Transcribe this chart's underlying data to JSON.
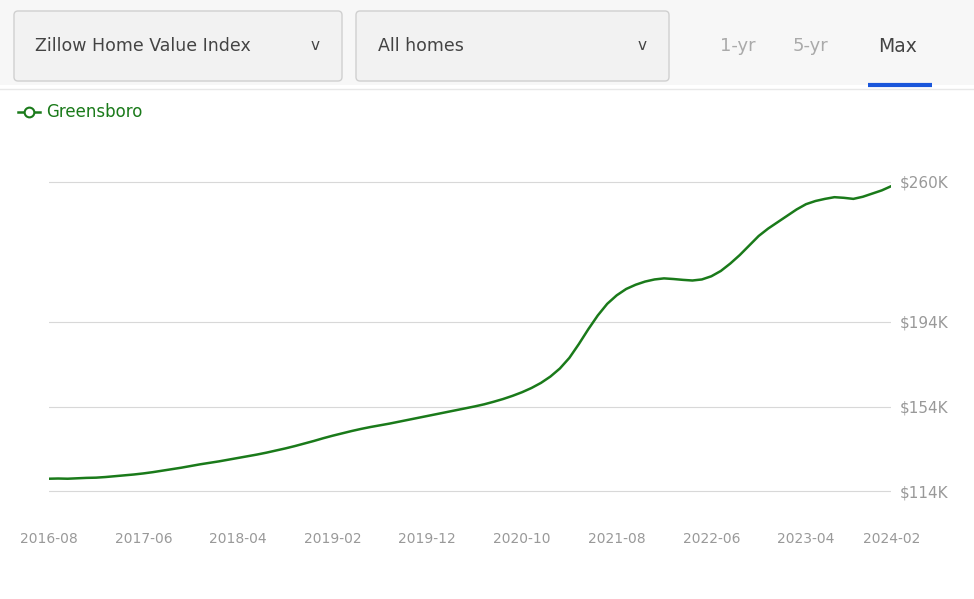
{
  "line_color": "#1a7a1a",
  "legend_label": "Greensboro",
  "background_color": "#ffffff",
  "grid_color": "#d8d8d8",
  "x_tick_labels": [
    "2016-08",
    "2017-06",
    "2018-04",
    "2019-02",
    "2019-12",
    "2020-10",
    "2021-08",
    "2022-06",
    "2023-04",
    "2024-02"
  ],
  "y_tick_labels": [
    "$114K",
    "$154K",
    "$194K",
    "$260K"
  ],
  "y_tick_values": [
    114000,
    154000,
    194000,
    260000
  ],
  "ylim": [
    100000,
    278000
  ],
  "data_y": [
    120000,
    120100,
    120000,
    120200,
    120400,
    120500,
    120800,
    121200,
    121600,
    122000,
    122500,
    123100,
    123800,
    124500,
    125200,
    126000,
    126800,
    127500,
    128200,
    129000,
    129800,
    130600,
    131400,
    132300,
    133300,
    134300,
    135400,
    136600,
    137800,
    139100,
    140300,
    141400,
    142500,
    143500,
    144400,
    145200,
    146000,
    146900,
    147800,
    148700,
    149600,
    150500,
    151400,
    152300,
    153200,
    154100,
    155100,
    156300,
    157600,
    159100,
    160800,
    162800,
    165200,
    168200,
    172000,
    177000,
    183500,
    190500,
    197000,
    202500,
    206500,
    209500,
    211500,
    213000,
    214000,
    214500,
    214200,
    213800,
    213500,
    214000,
    215500,
    218000,
    221500,
    225500,
    230000,
    234500,
    238000,
    241000,
    244000,
    247000,
    249500,
    251000,
    252000,
    252800,
    252500,
    252000,
    253000,
    254500,
    256000,
    258000
  ],
  "ui_dropdown1": "Zillow Home Value Index",
  "ui_dropdown2": "All homes",
  "ui_btn1": "1-yr",
  "ui_btn2": "5-yr",
  "ui_btn3": "Max",
  "ui_active_color": "#1a56db",
  "text_color_dark": "#444444",
  "text_color_gray": "#999999",
  "btn_color_gray": "#aaaaaa",
  "x_tick_positions": [
    0,
    10,
    20,
    30,
    40,
    50,
    60,
    70,
    80,
    89
  ],
  "header_bg": "#f5f5f5",
  "legend_marker_color": "#1a7a1a"
}
